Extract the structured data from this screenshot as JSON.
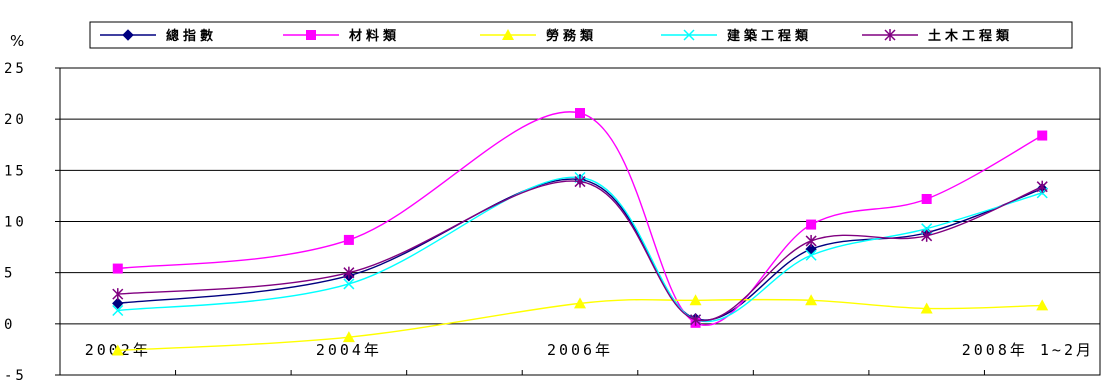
{
  "chart_data": {
    "type": "line",
    "unit_label": "%",
    "x_tick_labels": [
      "2002年",
      "2004年",
      "2006年",
      "2008年 1~2月"
    ],
    "x_points": 9,
    "ylim": [
      -5,
      25
    ],
    "y_ticks": [
      -5,
      0,
      5,
      10,
      15,
      20,
      25
    ],
    "grid": "horizontal",
    "legend_position": "top",
    "series": [
      {
        "name": "總指數",
        "color": "#000080",
        "marker": "diamond",
        "values": [
          2.0,
          4.7,
          14.1,
          0.5,
          7.3,
          8.9,
          13.2
        ]
      },
      {
        "name": "材料類",
        "color": "#ff00ff",
        "marker": "square",
        "values": [
          5.4,
          8.2,
          20.6,
          0.1,
          9.7,
          12.2,
          18.4
        ]
      },
      {
        "name": "勞務類",
        "color": "#ffff00",
        "marker": "triangle",
        "values": [
          -2.6,
          -1.3,
          2.0,
          2.3,
          2.3,
          1.5,
          1.8
        ]
      },
      {
        "name": "建築工程類",
        "color": "#00ffff",
        "marker": "x",
        "values": [
          1.3,
          3.9,
          14.3,
          0.4,
          6.7,
          9.3,
          12.8
        ]
      },
      {
        "name": "土木工程類",
        "color": "#800080",
        "marker": "asterisk",
        "values": [
          2.9,
          5.0,
          13.9,
          0.4,
          8.1,
          8.6,
          13.4
        ]
      }
    ],
    "point_slots": [
      0,
      2,
      4,
      5,
      6,
      7,
      8
    ]
  }
}
